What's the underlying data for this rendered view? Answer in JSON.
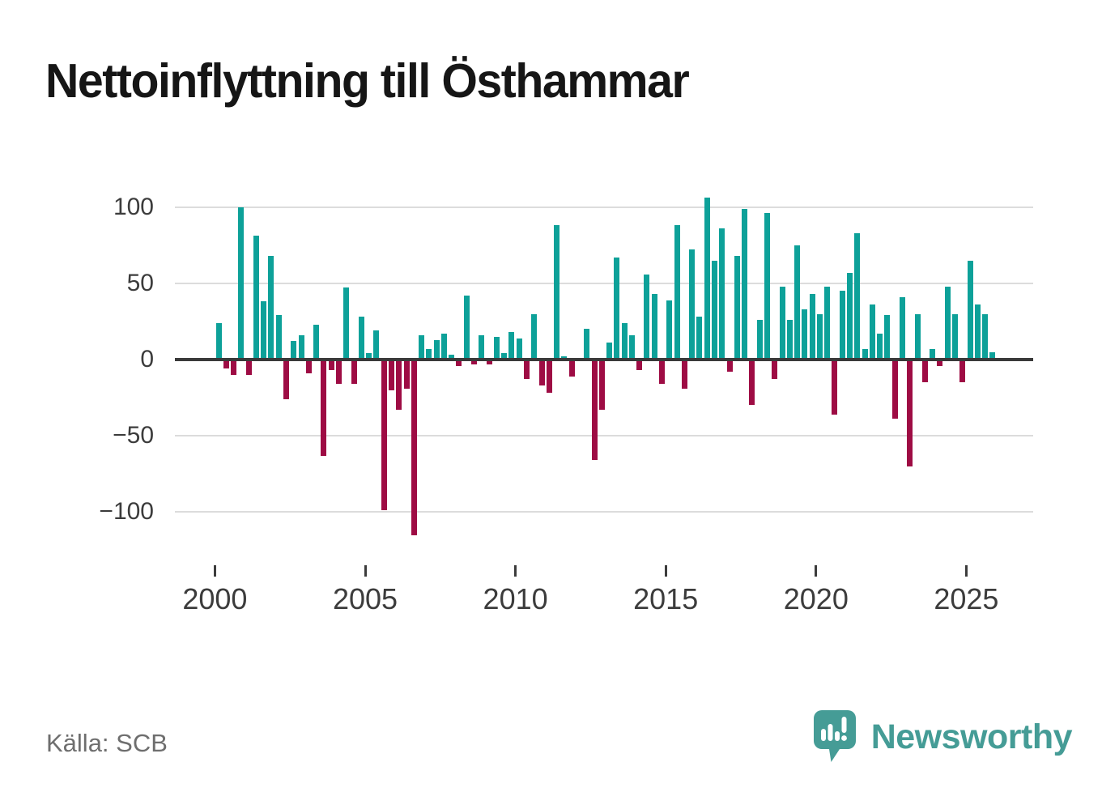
{
  "header": {
    "title": "Nettoinflyttning till Östhammar"
  },
  "footer": {
    "source": "Källa: SCB",
    "brand": "Newsworthy"
  },
  "chart_data": {
    "type": "bar",
    "title": "Nettoinflyttning till Östhammar",
    "xlabel": "",
    "ylabel": "",
    "grid": true,
    "legend": "none",
    "ylim": [
      -120,
      110
    ],
    "colors": {
      "positive": "#0da199",
      "negative": "#9e0c44",
      "gridline": "#dcdcdc",
      "zero_line": "#3a3a3a",
      "axis_text": "#3c3c3c",
      "brand_teal": "#459c96"
    },
    "y_ticks": [
      {
        "value": 100,
        "label": "100"
      },
      {
        "value": 50,
        "label": "50"
      },
      {
        "value": 0,
        "label": "0"
      },
      {
        "value": -50,
        "label": "−50"
      },
      {
        "value": -100,
        "label": "−100"
      }
    ],
    "x_ticks": [
      {
        "year": 2000,
        "label": "2000"
      },
      {
        "year": 2005,
        "label": "2005"
      },
      {
        "year": 2010,
        "label": "2010"
      },
      {
        "year": 2015,
        "label": "2015"
      },
      {
        "year": 2020,
        "label": "2020"
      },
      {
        "year": 2025,
        "label": "2025"
      }
    ],
    "categories": [
      "2000Q1",
      "2000Q2",
      "2000Q3",
      "2000Q4",
      "2001Q1",
      "2001Q2",
      "2001Q3",
      "2001Q4",
      "2002Q1",
      "2002Q2",
      "2002Q3",
      "2002Q4",
      "2003Q1",
      "2003Q2",
      "2003Q3",
      "2003Q4",
      "2004Q1",
      "2004Q2",
      "2004Q3",
      "2004Q4",
      "2005Q1",
      "2005Q2",
      "2005Q3",
      "2005Q4",
      "2006Q1",
      "2006Q2",
      "2006Q3",
      "2006Q4",
      "2007Q1",
      "2007Q2",
      "2007Q3",
      "2007Q4",
      "2008Q1",
      "2008Q2",
      "2008Q3",
      "2008Q4",
      "2009Q1",
      "2009Q2",
      "2009Q3",
      "2009Q4",
      "2010Q1",
      "2010Q2",
      "2010Q3",
      "2010Q4",
      "2011Q1",
      "2011Q2",
      "2011Q3",
      "2011Q4",
      "2012Q1",
      "2012Q2",
      "2012Q3",
      "2012Q4",
      "2013Q1",
      "2013Q2",
      "2013Q3",
      "2013Q4",
      "2014Q1",
      "2014Q2",
      "2014Q3",
      "2014Q4",
      "2015Q1",
      "2015Q2",
      "2015Q3",
      "2015Q4",
      "2016Q1",
      "2016Q2",
      "2016Q3",
      "2016Q4",
      "2017Q1",
      "2017Q2",
      "2017Q3",
      "2017Q4",
      "2018Q1",
      "2018Q2",
      "2018Q3",
      "2018Q4",
      "2019Q1",
      "2019Q2",
      "2019Q3",
      "2019Q4",
      "2020Q1",
      "2020Q2",
      "2020Q3",
      "2020Q4",
      "2021Q1",
      "2021Q2",
      "2021Q3",
      "2021Q4",
      "2022Q1",
      "2022Q2",
      "2022Q3",
      "2022Q4",
      "2023Q1",
      "2023Q2",
      "2023Q3",
      "2023Q4",
      "2024Q1",
      "2024Q2",
      "2024Q3",
      "2024Q4",
      "2025Q1",
      "2025Q2",
      "2025Q3",
      "2025Q4"
    ],
    "values": [
      24,
      -6,
      -10,
      100,
      -10,
      81,
      38,
      68,
      29,
      -26,
      12,
      16,
      -9,
      23,
      -63,
      -7,
      -16,
      47,
      -16,
      28,
      4,
      19,
      -99,
      -20,
      -33,
      -19,
      -115,
      16,
      7,
      13,
      17,
      3,
      -4,
      42,
      -3,
      16,
      -3,
      15,
      4,
      18,
      14,
      -13,
      30,
      -17,
      -22,
      88,
      2,
      -11,
      0,
      20,
      -66,
      -33,
      11,
      67,
      24,
      16,
      -7,
      56,
      43,
      -16,
      39,
      88,
      -19,
      72,
      28,
      106,
      65,
      86,
      -8,
      68,
      99,
      -30,
      26,
      96,
      -13,
      48,
      26,
      75,
      33,
      43,
      30,
      48,
      -36,
      45,
      57,
      83,
      7,
      36,
      17,
      29,
      -39,
      41,
      -70,
      30,
      -15,
      7,
      -4,
      48,
      30,
      -15,
      65,
      36,
      30,
      5
    ]
  }
}
